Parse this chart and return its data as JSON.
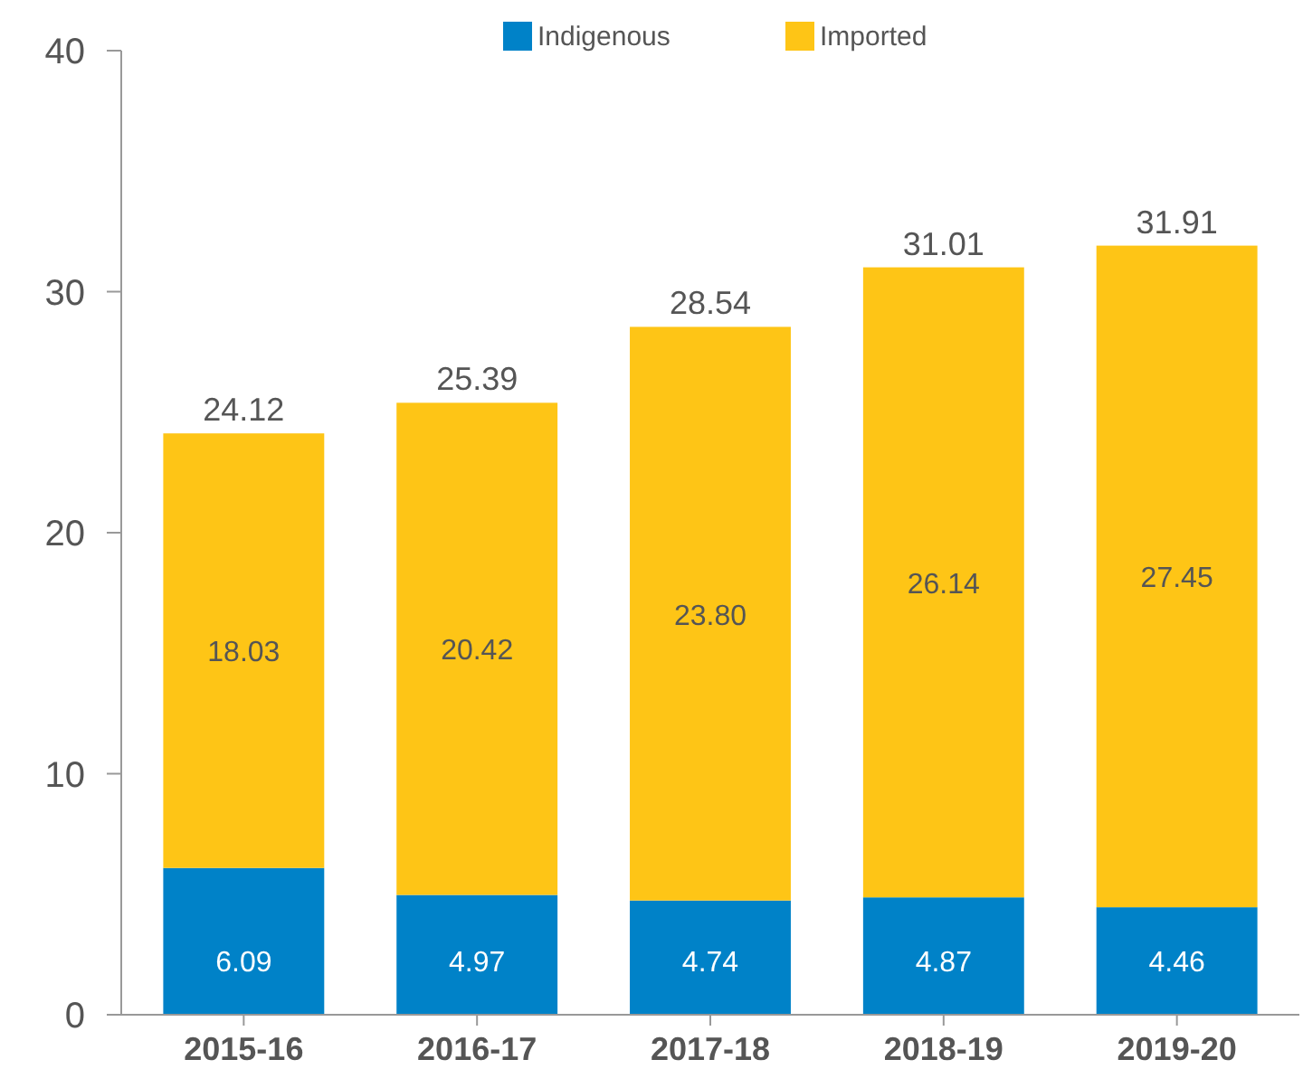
{
  "chart_data": {
    "type": "bar",
    "stacked": true,
    "categories": [
      "2015-16",
      "2016-17",
      "2017-18",
      "2018-19",
      "2019-20"
    ],
    "series": [
      {
        "name": "Indigenous",
        "color": "#0082c8",
        "values": [
          6.09,
          4.97,
          4.74,
          4.87,
          4.46
        ],
        "value_labels": [
          "6.09",
          "4.97",
          "4.74",
          "4.87",
          "4.46"
        ]
      },
      {
        "name": "Imported",
        "color": "#fec516",
        "values": [
          18.03,
          20.42,
          23.8,
          26.14,
          27.45
        ],
        "value_labels": [
          "18.03",
          "20.42",
          "23.80",
          "26.14",
          "27.45"
        ]
      }
    ],
    "totals": [
      "24.12",
      "25.39",
      "28.54",
      "31.01",
      "31.91"
    ],
    "ylim": [
      0,
      40
    ],
    "yticks": [
      0,
      10,
      20,
      30,
      40
    ],
    "grid": false,
    "legend": "top"
  }
}
